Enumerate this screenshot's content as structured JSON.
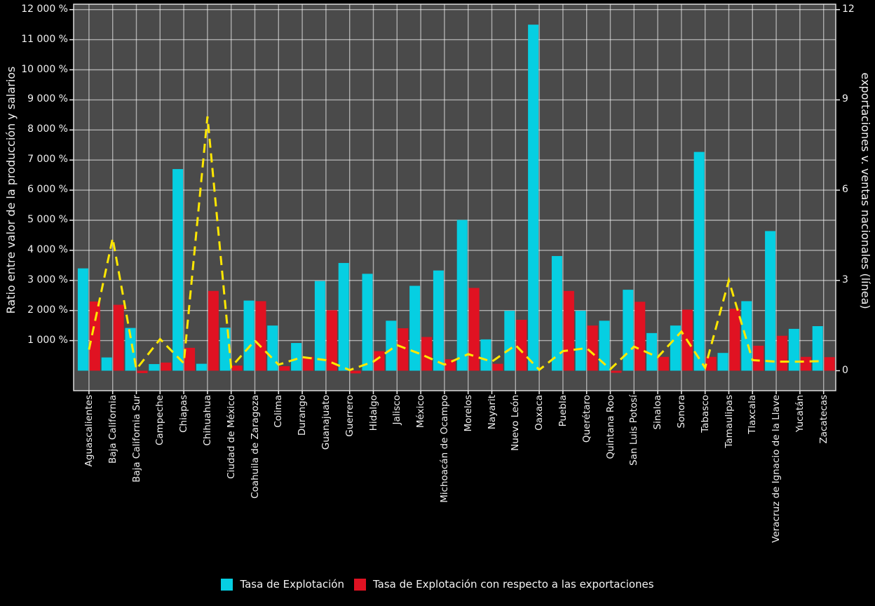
{
  "axes": {
    "left": {
      "title": "Ratio entre valor de la producción y salarios",
      "tick_labels": [
        "1 000 %",
        "2 000 %",
        "3 000 %",
        "4 000 %",
        "5 000 %",
        "6 000 %",
        "7 000 %",
        "8 000 %",
        "9 000 %",
        "10 000 %",
        "11 000 %",
        "12 000 %"
      ],
      "tick_values": [
        1000,
        2000,
        3000,
        4000,
        5000,
        6000,
        7000,
        8000,
        9000,
        10000,
        11000,
        12000
      ]
    },
    "right": {
      "title": "exportaciones v. ventas nacionales (línea)",
      "tick_labels": [
        "0",
        "3",
        "6",
        "9",
        "12"
      ],
      "tick_values": [
        0,
        3,
        6,
        9,
        12
      ]
    }
  },
  "legend": {
    "items": [
      {
        "label": "Tasa de Explotación",
        "color": "#06cfe2"
      },
      {
        "label": "Tasa de Explotación con respecto a las exportaciones",
        "color": "#e01222"
      }
    ]
  },
  "colors": {
    "background": "#000000",
    "plot_background": "#4a4a4a",
    "grid": "#ffffff",
    "bar_primary": "#06cfe2",
    "bar_secondary": "#e01222",
    "line": "#ffe700",
    "text": "#f2f2f2"
  },
  "chart_data": {
    "type": "bar",
    "subtype": "grouped bars with secondary-axis dashed line",
    "title": "",
    "xlabel": "",
    "ylabel_left": "Ratio entre valor de la producción y salarios",
    "ylabel_right": "exportaciones v. ventas nacionales (línea)",
    "ylim_left_percent": [
      -650,
      12170
    ],
    "ylim_right": [
      -0.65,
      12.17
    ],
    "grid": "on",
    "legend_position": "bottom",
    "categories": [
      "Aguascalientes",
      "Baja California",
      "Baja California Sur",
      "Campeche",
      "Chiapas",
      "Chihuahua",
      "Ciudad de México",
      "Coahuila de Zaragoza",
      "Colima",
      "Durango",
      "Guanajuato",
      "Guerrero",
      "Hidalgo",
      "Jalisco",
      "México",
      "Michoacán de Ocampo",
      "Morelos",
      "Nayarit",
      "Nuevo León",
      "Oaxaca",
      "Puebla",
      "Querétaro",
      "Quintana Roo",
      "San Luis Potosí",
      "Sinaloa",
      "Sonora",
      "Tabasco",
      "Tamaulipas",
      "Tlaxcala",
      "Veracruz de Ignacio de la Llave",
      "Yucatán",
      "Zacatecas"
    ],
    "series": [
      {
        "name": "Tasa de Explotación",
        "type": "bar",
        "axis": "left",
        "unit": "%",
        "color": "#06cfe2",
        "values": [
          3400,
          440,
          1420,
          220,
          6700,
          230,
          1430,
          2330,
          1500,
          920,
          2980,
          3580,
          3220,
          1660,
          2820,
          3330,
          5010,
          1040,
          1990,
          11500,
          3810,
          1990,
          1660,
          2690,
          1250,
          1500,
          7270,
          590,
          2310,
          4640,
          1390,
          1480
        ]
      },
      {
        "name": "Tasa de Explotación con respecto a las exportaciones",
        "type": "bar",
        "axis": "left",
        "unit": "%",
        "color": "#e01222",
        "values": [
          2300,
          2190,
          -80,
          270,
          760,
          2650,
          170,
          2310,
          150,
          460,
          2010,
          -90,
          650,
          1410,
          1120,
          380,
          2750,
          230,
          1690,
          0,
          2650,
          1500,
          -70,
          2290,
          460,
          2030,
          460,
          2060,
          830,
          1160,
          460,
          450
        ]
      },
      {
        "name": "exportaciones v. ventas nacionales (línea)",
        "type": "line",
        "style": "dashed",
        "axis": "right",
        "color": "#ffe700",
        "values": [
          0.7,
          4.4,
          0.05,
          1.05,
          0.25,
          8.45,
          0.12,
          1.0,
          0.2,
          0.45,
          0.35,
          0.02,
          0.3,
          0.85,
          0.55,
          0.2,
          0.55,
          0.3,
          0.85,
          0.03,
          0.65,
          0.75,
          0.05,
          0.8,
          0.45,
          1.3,
          0.1,
          3.0,
          0.35,
          0.3,
          0.3,
          0.32
        ]
      }
    ]
  }
}
